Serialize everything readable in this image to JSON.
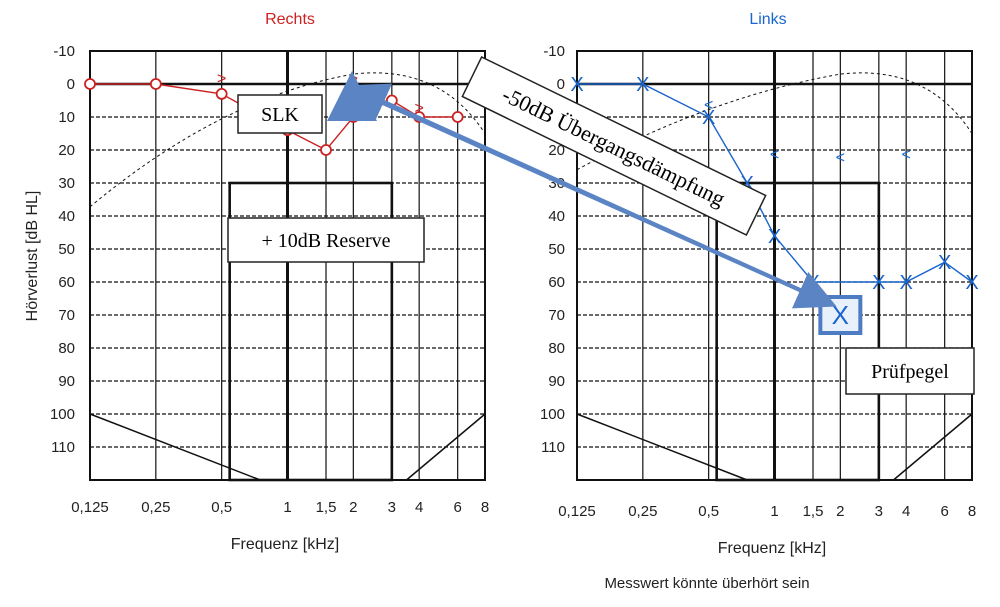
{
  "chart_data": [
    {
      "type": "line",
      "title": "Rechts",
      "title_color": "#cc2222",
      "xlabel": "Frequenz [kHz]",
      "ylabel": "Hörverlust [dB HL]",
      "x_scale": "log2",
      "x_ticks": [
        "0,125",
        "0,25",
        "0,5",
        "1",
        "1,5",
        "2",
        "3",
        "4",
        "6",
        "8"
      ],
      "x_tick_values": [
        0.125,
        0.25,
        0.5,
        1,
        1.5,
        2,
        3,
        4,
        6,
        8
      ],
      "y_ticks": [
        "-10",
        "0",
        "10",
        "20",
        "30",
        "40",
        "50",
        "60",
        "70",
        "80",
        "90",
        "100",
        "110"
      ],
      "ylim": [
        -10,
        120
      ],
      "y_inverted": true,
      "grid": true,
      "series": [
        {
          "kind": "air-conduction-circles",
          "color": "#cc2222",
          "x": [
            0.125,
            0.25,
            0.5,
            1,
            1.5,
            2,
            3,
            4,
            6
          ],
          "y": [
            0,
            0,
            3,
            14,
            20,
            10,
            5,
            10,
            10
          ]
        },
        {
          "kind": "bone-conduction-marks",
          "color": "#cc2222",
          "marker": ">",
          "x": [
            0.5,
            2,
            4
          ],
          "y": [
            -2,
            -2,
            7
          ]
        }
      ],
      "annotations": [
        {
          "text": "SLK"
        },
        {
          "text": "+ 10dB Reserve"
        }
      ]
    },
    {
      "type": "line",
      "title": "Links",
      "title_color": "#1a66cc",
      "xlabel": "Frequenz [kHz]",
      "ylabel": "",
      "x_scale": "log2",
      "x_ticks": [
        "0,125",
        "0,25",
        "0,5",
        "1",
        "1,5",
        "2",
        "3",
        "4",
        "6",
        "8"
      ],
      "x_tick_values": [
        0.125,
        0.25,
        0.5,
        1,
        1.5,
        2,
        3,
        4,
        6,
        8
      ],
      "y_ticks": [
        "-10",
        "0",
        "10",
        "20",
        "30",
        "40",
        "50",
        "60",
        "70",
        "80",
        "90",
        "100",
        "110"
      ],
      "ylim": [
        -10,
        120
      ],
      "y_inverted": true,
      "grid": true,
      "series": [
        {
          "kind": "air-conduction-crosses",
          "color": "#1a66cc",
          "x": [
            0.125,
            0.25,
            0.5,
            0.75,
            1,
            1.5,
            3,
            4,
            6,
            8
          ],
          "y": [
            0,
            0,
            10,
            30,
            46,
            60,
            60,
            60,
            54,
            60
          ]
        },
        {
          "kind": "bone-conduction-marks",
          "color": "#1a66cc",
          "marker": "<",
          "x": [
            0.5,
            1,
            2,
            4
          ],
          "y": [
            6,
            21,
            22,
            21
          ]
        },
        {
          "kind": "test-level",
          "color": "#1a66cc",
          "x": [
            2
          ],
          "y": [
            70
          ]
        }
      ],
      "annotations": [
        {
          "text": "-50dB Übergangsdämpfung"
        },
        {
          "text": "Prüfpegel"
        },
        {
          "text": "Messwert könnte überhört sein"
        }
      ]
    }
  ]
}
